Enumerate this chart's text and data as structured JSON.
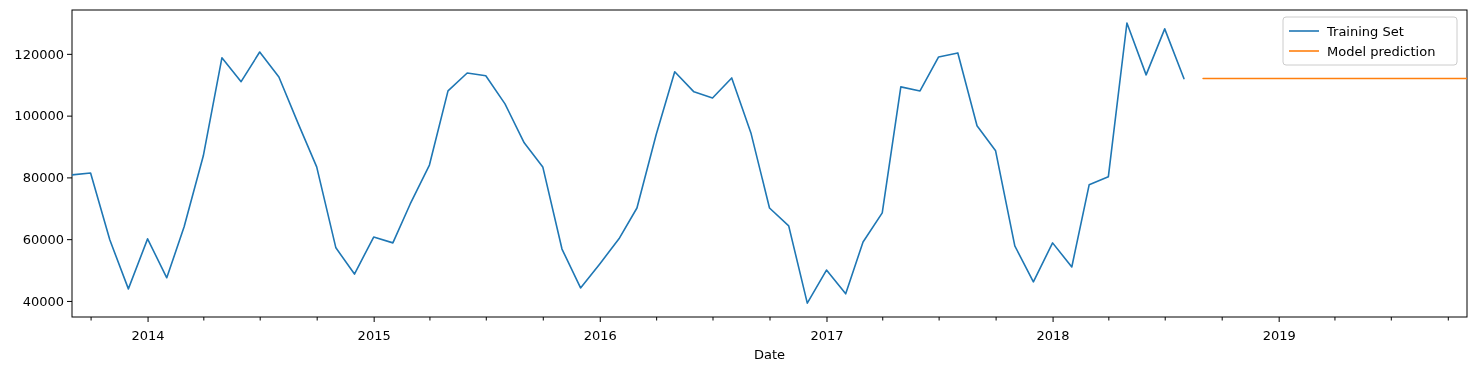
{
  "chart_data": {
    "type": "line",
    "xlabel": "Date",
    "xlim": [
      "2013-09",
      "2019-11"
    ],
    "ylim": [
      34800,
      134200
    ],
    "yticks": [
      40000,
      60000,
      80000,
      100000,
      120000
    ],
    "xticks": [
      {
        "value": "2013-10",
        "label": null
      },
      {
        "value": "2014-01",
        "label": "2014"
      },
      {
        "value": "2014-04",
        "label": null
      },
      {
        "value": "2014-07",
        "label": null
      },
      {
        "value": "2014-10",
        "label": null
      },
      {
        "value": "2015-01",
        "label": "2015"
      },
      {
        "value": "2015-04",
        "label": null
      },
      {
        "value": "2015-07",
        "label": null
      },
      {
        "value": "2015-10",
        "label": null
      },
      {
        "value": "2016-01",
        "label": "2016"
      },
      {
        "value": "2016-04",
        "label": null
      },
      {
        "value": "2016-07",
        "label": null
      },
      {
        "value": "2016-10",
        "label": null
      },
      {
        "value": "2017-01",
        "label": "2017"
      },
      {
        "value": "2017-04",
        "label": null
      },
      {
        "value": "2017-07",
        "label": null
      },
      {
        "value": "2017-10",
        "label": null
      },
      {
        "value": "2018-01",
        "label": "2018"
      },
      {
        "value": "2018-04",
        "label": null
      },
      {
        "value": "2018-07",
        "label": null
      },
      {
        "value": "2018-10",
        "label": null
      },
      {
        "value": "2019-01",
        "label": "2019"
      },
      {
        "value": "2019-04",
        "label": null
      },
      {
        "value": "2019-07",
        "label": null
      },
      {
        "value": "2019-10",
        "label": null
      }
    ],
    "legend": "top right",
    "line_style": "solid",
    "marker": "none",
    "series": [
      {
        "name": "Training Set",
        "color": "#1f77b4",
        "x": [
          "2013-09",
          "2013-10",
          "2013-11",
          "2013-12",
          "2014-01",
          "2014-02",
          "2014-03",
          "2014-04",
          "2014-05",
          "2014-06",
          "2014-07",
          "2014-08",
          "2014-09",
          "2014-10",
          "2014-11",
          "2014-12",
          "2015-01",
          "2015-02",
          "2015-03",
          "2015-04",
          "2015-05",
          "2015-06",
          "2015-07",
          "2015-08",
          "2015-09",
          "2015-10",
          "2015-11",
          "2015-12",
          "2016-01",
          "2016-02",
          "2016-03",
          "2016-04",
          "2016-05",
          "2016-06",
          "2016-07",
          "2016-08",
          "2016-09",
          "2016-10",
          "2016-11",
          "2016-12",
          "2017-01",
          "2017-02",
          "2017-03",
          "2017-04",
          "2017-05",
          "2017-06",
          "2017-07",
          "2017-08",
          "2017-09",
          "2017-10",
          "2017-11",
          "2017-12",
          "2018-01",
          "2018-02",
          "2018-03",
          "2018-04",
          "2018-05",
          "2018-06",
          "2018-07",
          "2018-08"
        ],
        "values": [
          80800,
          81400,
          59800,
          43900,
          60100,
          47500,
          64000,
          87000,
          118700,
          111000,
          120600,
          112500,
          97500,
          83400,
          57200,
          48700,
          60700,
          58800,
          71400,
          84000,
          108000,
          113800,
          112900,
          103800,
          91200,
          83400,
          56800,
          44200,
          52000,
          60100,
          70100,
          93800,
          114200,
          107700,
          105700,
          112200,
          94400,
          70100,
          64300,
          39300,
          50000,
          42300,
          59100,
          68500,
          109300,
          108000,
          119000,
          120300,
          96700,
          88600,
          57800,
          46200,
          58800,
          51000,
          77600,
          80200,
          130000,
          113200,
          128100,
          112000
        ]
      },
      {
        "name": "Model prediction",
        "color": "#ff7f0e",
        "x": [
          "2018-09",
          "2019-11"
        ],
        "values": [
          112000,
          112000
        ]
      }
    ]
  }
}
